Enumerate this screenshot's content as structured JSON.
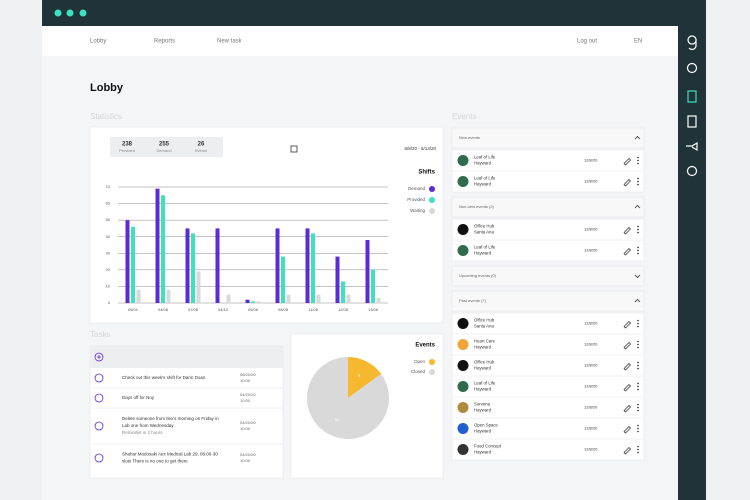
{
  "nav": {
    "links": [
      "Lobby",
      "Reports",
      "New task"
    ],
    "logout": "Log out",
    "lang": "EN"
  },
  "page_title": "Lobby",
  "statistics": {
    "label": "Statistics",
    "summary": [
      {
        "value": 238,
        "label": "Provided"
      },
      {
        "value": 255,
        "label": "Demand"
      },
      {
        "value": 26,
        "label": "Events"
      }
    ],
    "date_range": "6/8/20 - 6/13/20"
  },
  "chart_data": [
    {
      "type": "bar",
      "title": "Shifts",
      "categories": [
        "05/01",
        "04/08",
        "07/08",
        "04/10",
        "05/08",
        "08/08",
        "11/08",
        "12/08",
        "13/08"
      ],
      "series": [
        {
          "name": "Demand",
          "color": "#5b2bd6",
          "values": [
            50,
            69,
            45,
            45,
            2,
            45,
            45,
            28,
            38
          ]
        },
        {
          "name": "Provided",
          "color": "#3ee0c2",
          "values": [
            46,
            65,
            42,
            0,
            1,
            28,
            42,
            13,
            20
          ]
        },
        {
          "name": "Waiting",
          "color": "#d9d9d9",
          "values": [
            8,
            8,
            19,
            5,
            1,
            5,
            5,
            5,
            3
          ]
        }
      ],
      "ylim": [
        0,
        70
      ],
      "yticks": [
        0,
        10,
        20,
        30,
        40,
        50,
        60,
        70
      ],
      "grid": true
    },
    {
      "type": "pie",
      "title": "Events",
      "categories": [
        "Open",
        "Closed"
      ],
      "values": [
        9,
        51
      ],
      "colors": [
        "#f5b82e",
        "#d9d9d9"
      ]
    }
  ],
  "tasks": {
    "label": "Tasks",
    "items": [
      {
        "lines": [
          "Check out this week's shift for Darin Doan"
        ],
        "date": "06/20/20",
        "time": "10:00"
      },
      {
        "lines": [
          "Days off for Noy"
        ],
        "date": "04/20/20",
        "time": "10:00"
      },
      {
        "lines": [
          "Delete someone from Ilex's morning on Friday in",
          "Lab one from Wednesday",
          "Reminder in 2 hours"
        ],
        "date": "04/20/20",
        "time": "10:00"
      },
      {
        "lines": [
          "Shahar Modosaki Aex Medical Lab 29, 08:00-30",
          "slots There is no one to get there"
        ],
        "date": "04/20/20",
        "time": "10:00"
      }
    ]
  },
  "events": {
    "label": "Events",
    "sections": [
      {
        "title": "New events",
        "items": [
          {
            "name": "Leaf of Life",
            "city": "Hayward",
            "date": "12/8/20"
          },
          {
            "name": "Leaf of Life",
            "city": "Hayward",
            "date": "12/8/20"
          }
        ]
      },
      {
        "title": "Non-new events (2)",
        "items": [
          {
            "name": "Office Hub",
            "city": "Santa Ana",
            "date": "12/8/20"
          },
          {
            "name": "Leaf of Life",
            "city": "Hayward",
            "date": "12/8/20"
          }
        ]
      },
      {
        "title": "Upcoming events (0)",
        "items": []
      },
      {
        "title": "Past events (7)",
        "items": [
          {
            "name": "Office Hub",
            "city": "Santa Ana",
            "date": "12/8/20"
          },
          {
            "name": "Heart Care",
            "city": "Hayward",
            "date": "12/8/20"
          },
          {
            "name": "Office Hub",
            "city": "Hayward",
            "date": "12/8/20"
          },
          {
            "name": "Leaf of Life",
            "city": "Hayward",
            "date": "12/8/20"
          },
          {
            "name": "Sonoma",
            "city": "Hayward",
            "date": "12/8/20"
          },
          {
            "name": "Open Space",
            "city": "Hayward",
            "date": "12/8/20"
          },
          {
            "name": "Food Concept",
            "city": "Hayward",
            "date": "12/8/20"
          }
        ]
      }
    ]
  }
}
